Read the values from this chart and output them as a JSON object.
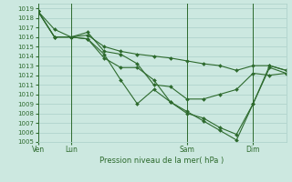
{
  "title": "Pression niveau de la mer( hPa )",
  "background_color": "#cce8e0",
  "grid_color": "#aacfc8",
  "line_color": "#2d6a2d",
  "marker_color": "#2d6a2d",
  "ylim": [
    1005,
    1019.5
  ],
  "xtick_labels": [
    "Ven",
    "Lun",
    "Sam",
    "Dim"
  ],
  "lines": [
    {
      "x": [
        0,
        1,
        2,
        3,
        4,
        5,
        6,
        7,
        8,
        9,
        10,
        11,
        12,
        13,
        14,
        15
      ],
      "y": [
        1018.7,
        1016.0,
        1016.0,
        1016.2,
        1015.0,
        1014.5,
        1014.2,
        1014.0,
        1013.8,
        1013.5,
        1013.2,
        1013.0,
        1012.5,
        1013.0,
        1013.0,
        1012.5
      ]
    },
    {
      "x": [
        0,
        1,
        2,
        3,
        4,
        5,
        6,
        7,
        8,
        9,
        10,
        11,
        12,
        13,
        14,
        15
      ],
      "y": [
        1018.7,
        1016.8,
        1016.0,
        1016.5,
        1014.5,
        1014.2,
        1013.2,
        1011.0,
        1010.8,
        1009.5,
        1009.5,
        1010.0,
        1010.5,
        1012.2,
        1012.0,
        1012.2
      ]
    },
    {
      "x": [
        0,
        1,
        2,
        3,
        4,
        5,
        6,
        7,
        8,
        9,
        10,
        11,
        12,
        13,
        14,
        15
      ],
      "y": [
        1018.7,
        1016.0,
        1016.0,
        1015.8,
        1014.2,
        1011.5,
        1009.0,
        1010.5,
        1009.2,
        1008.0,
        1007.5,
        1006.5,
        1005.8,
        1009.0,
        1012.8,
        1012.2
      ]
    },
    {
      "x": [
        0,
        1,
        2,
        3,
        4,
        5,
        6,
        7,
        8,
        9,
        10,
        11,
        12,
        13,
        14,
        15
      ],
      "y": [
        1018.7,
        1016.0,
        1016.0,
        1015.8,
        1013.8,
        1012.8,
        1012.8,
        1011.5,
        1009.2,
        1008.2,
        1007.2,
        1006.2,
        1005.2,
        1009.0,
        1013.0,
        1012.5
      ]
    }
  ],
  "vlines_x": [
    0,
    2,
    9,
    13
  ],
  "xtick_x": [
    0,
    2,
    9,
    13
  ],
  "num_points": 16,
  "xlim": [
    0,
    15
  ]
}
